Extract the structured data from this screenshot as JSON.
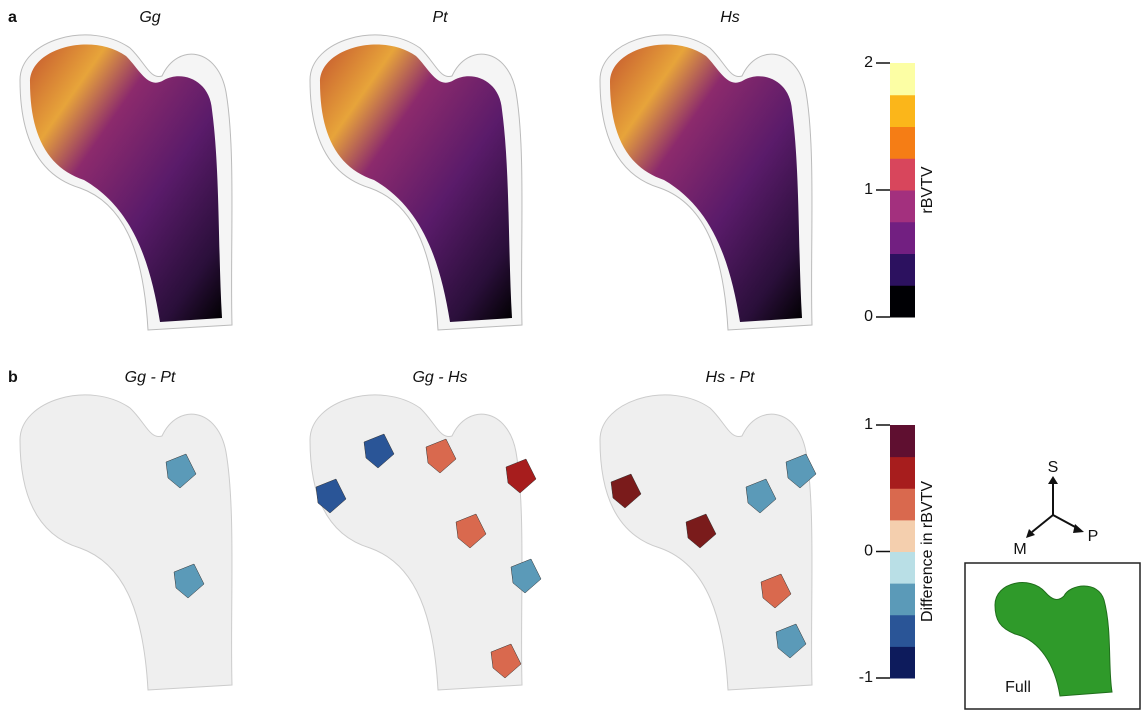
{
  "panels": [
    {
      "label": "a",
      "titles": [
        "Gg",
        "Pt",
        "Hs"
      ],
      "colorbar": {
        "label": "rBVTV",
        "lim": [
          0,
          2
        ],
        "ticks": [
          0,
          1,
          2
        ],
        "colors": [
          "#000004",
          "#2c115f",
          "#721f81",
          "#a3307e",
          "#d8465c",
          "#f57d15",
          "#fbb61a",
          "#fcfea4"
        ]
      }
    },
    {
      "label": "b",
      "titles": [
        "Gg - Pt",
        "Gg - Hs",
        "Hs - Pt"
      ],
      "colorbar": {
        "label": "Difference in rBVTV",
        "lim": [
          -1,
          1
        ],
        "ticks": [
          -1,
          0,
          1
        ],
        "colors": [
          "#0d1b5c",
          "#2a5597",
          "#5b9ab8",
          "#b9dfe6",
          "#f4cfae",
          "#d9694e",
          "#a71d1d",
          "#5f0f30"
        ]
      }
    }
  ],
  "orientation": {
    "labels": [
      "S",
      "M",
      "P"
    ]
  },
  "inset": {
    "label": "Full"
  }
}
